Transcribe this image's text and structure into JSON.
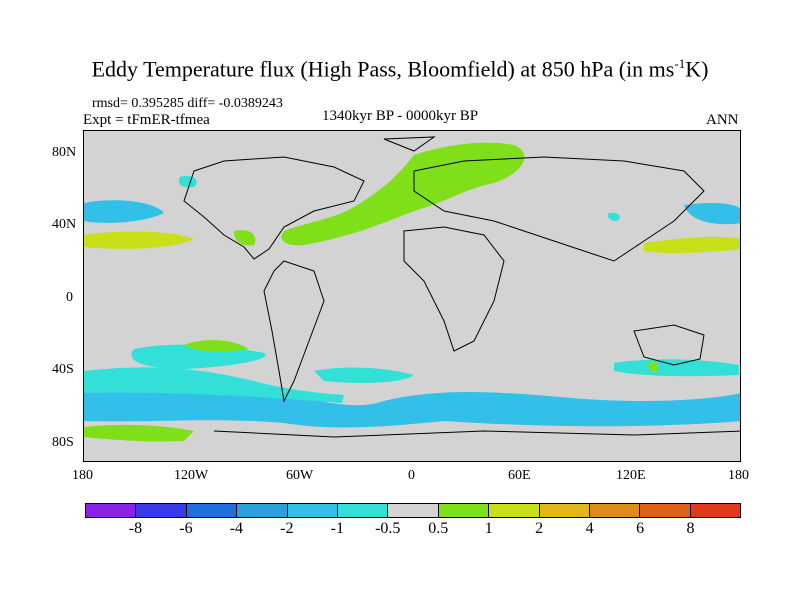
{
  "title": {
    "main": "Eddy Temperature flux (High Pass, Bloomfield) at 850 hPa (in ms",
    "sup": "-1",
    "end": "K)"
  },
  "stats": "rmsd= 0.395285 diff= -0.0389243",
  "expt": "Expt = tFmER-tfmea",
  "period": "1340kyr BP - 0000kyr BP",
  "season": "ANN",
  "lat_labels": [
    "80N",
    "40N",
    "0",
    "40S",
    "80S"
  ],
  "lon_labels": [
    "180",
    "120W",
    "60W",
    "0",
    "60E",
    "120E",
    "180"
  ],
  "legend": {
    "colors": [
      "#8a22e8",
      "#3a3ae8",
      "#1f6fe0",
      "#2ba0e0",
      "#33c0e8",
      "#33e0d8",
      "#d3d3d3",
      "#7fe01a",
      "#c8e01a",
      "#e0b81a",
      "#e08a1a",
      "#e0601a",
      "#e03a1a"
    ],
    "ticks": [
      "-8",
      "-6",
      "-4",
      "-2",
      "-1",
      "-0.5",
      "0.5",
      "1",
      "2",
      "4",
      "6",
      "8"
    ]
  },
  "colors": {
    "background_field": "#d3d3d3",
    "neg_light": "#33c0e8",
    "neg_lighter": "#33e0d8",
    "pos_light": "#7fe01a",
    "pos_yellow": "#c8e01a"
  }
}
